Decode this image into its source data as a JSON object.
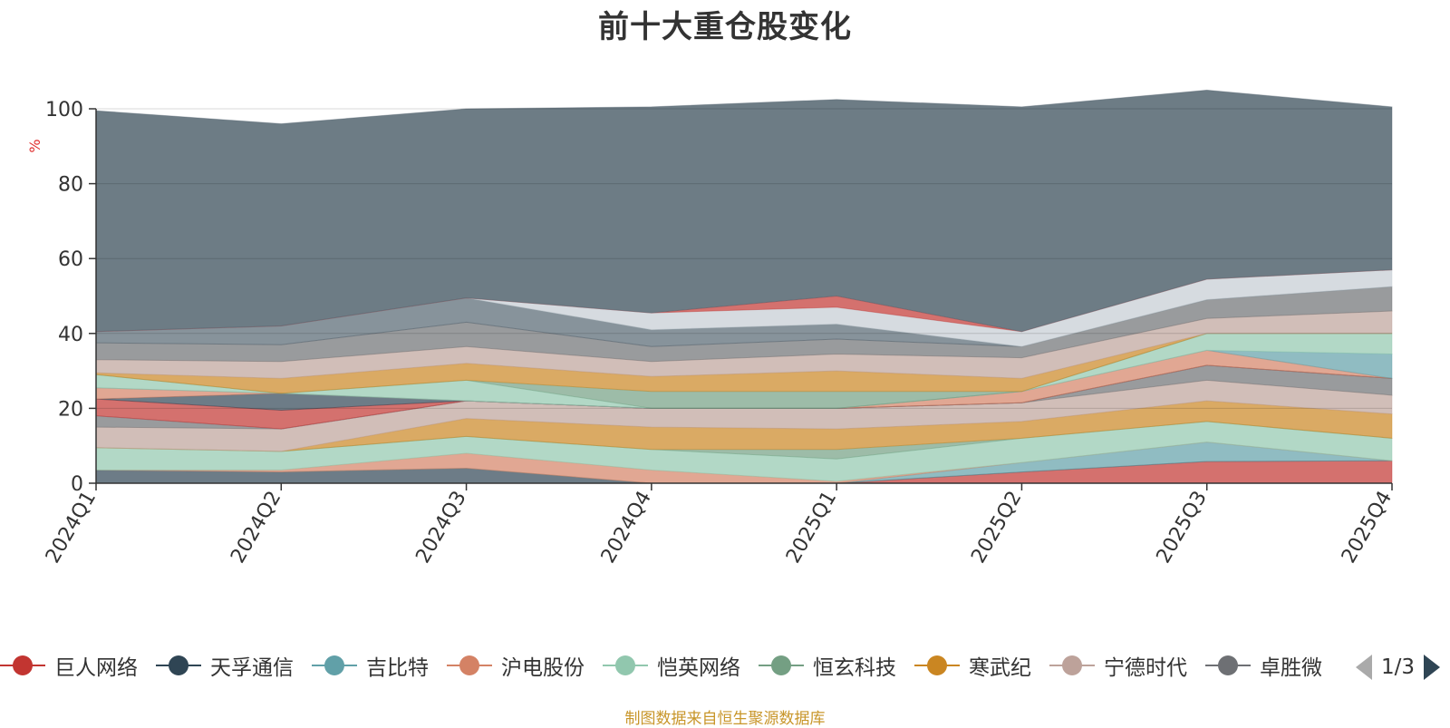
{
  "chart_data": {
    "type": "area",
    "stacked": true,
    "title": "前十大重仓股变化",
    "ylabel": "%",
    "xlabel": "",
    "ylim": [
      0,
      100
    ],
    "yticks": [
      0,
      20,
      40,
      60,
      80,
      100
    ],
    "grid": true,
    "categories": [
      "2024Q1",
      "2024Q2",
      "2024Q3",
      "2024Q4",
      "2025Q1",
      "2025Q2",
      "2025Q3",
      "2025Q4"
    ],
    "series": [
      {
        "name": "巨人网络",
        "color": "#c23531",
        "values": [
          0,
          0,
          0,
          0,
          0,
          3.0,
          5.8,
          6.0
        ]
      },
      {
        "name": "天孚通信",
        "color": "#2f4554",
        "values": [
          3.5,
          3.0,
          4.0,
          0,
          0,
          0,
          0,
          0
        ]
      },
      {
        "name": "吉比特",
        "color": "#61a0a8",
        "values": [
          0,
          0,
          0,
          0,
          0,
          2.5,
          5.2,
          0
        ]
      },
      {
        "name": "沪电股份",
        "color": "#d48265",
        "values": [
          0,
          0.5,
          4.0,
          3.5,
          0.5,
          0,
          0,
          0
        ]
      },
      {
        "name": "恺英网络",
        "color": "#91c7ae",
        "values": [
          6.0,
          5.0,
          4.5,
          5.5,
          6.0,
          6.5,
          5.5,
          6.0
        ]
      },
      {
        "name": "恒玄科技",
        "color": "#749f83",
        "values": [
          0,
          0,
          0,
          0,
          2.5,
          0,
          0,
          0
        ]
      },
      {
        "name": "寒武纪",
        "color": "#ca8622",
        "values": [
          0,
          0,
          4.8,
          6.0,
          5.5,
          4.5,
          5.5,
          6.5
        ]
      },
      {
        "name": "宁德时代",
        "color": "#bda29a",
        "values": [
          5.5,
          6.0,
          4.7,
          5.0,
          5.5,
          5.0,
          5.5,
          5.0
        ]
      },
      {
        "name": "卓胜微",
        "color": "#6e7074",
        "values": [
          3.0,
          0,
          0,
          0,
          0,
          0,
          4.0,
          4.5
        ]
      },
      {
        "name": "",
        "color": "#546570",
        "values": [
          0,
          0,
          0,
          0,
          0,
          0,
          0,
          0
        ]
      },
      {
        "name": "",
        "color": "#c4ccd3",
        "values": [
          0,
          0,
          0,
          0,
          0,
          0,
          0,
          0
        ]
      },
      {
        "name": "",
        "color": "#c23531",
        "values": [
          4.5,
          5.0,
          0,
          0,
          0,
          0,
          0,
          0
        ]
      },
      {
        "name": "",
        "color": "#2f4554",
        "values": [
          0,
          4.5,
          0,
          0,
          0,
          0,
          0,
          0
        ]
      },
      {
        "name": "",
        "color": "#d48265",
        "values": [
          3.0,
          0,
          0,
          0,
          0,
          3.0,
          4.0,
          0
        ]
      },
      {
        "name": "",
        "color": "#61a0a8",
        "values": [
          0,
          0,
          0,
          0,
          0,
          0,
          0,
          6.5
        ]
      },
      {
        "name": "",
        "color": "#91c7ae",
        "values": [
          3.5,
          0,
          5.5,
          0,
          0,
          0,
          4.5,
          5.5
        ]
      },
      {
        "name": "",
        "color": "#749f83",
        "values": [
          0,
          0,
          0,
          4.5,
          4.5,
          0,
          0,
          0
        ]
      },
      {
        "name": "",
        "color": "#ca8622",
        "values": [
          0.5,
          4.0,
          4.5,
          4.0,
          5.5,
          3.5,
          0,
          0
        ]
      },
      {
        "name": "",
        "color": "#bda29a",
        "values": [
          3.5,
          4.5,
          4.5,
          4.0,
          4.5,
          5.5,
          4.0,
          6.0
        ]
      },
      {
        "name": "",
        "color": "#6e7074",
        "values": [
          4.5,
          4.5,
          6.5,
          4.0,
          4.0,
          3.0,
          5.0,
          6.5
        ]
      },
      {
        "name": "",
        "color": "#546570",
        "values": [
          3.0,
          5.0,
          6.5,
          4.5,
          4.0,
          0,
          0,
          0
        ]
      },
      {
        "name": "",
        "color": "#c4ccd3",
        "values": [
          0,
          0,
          0,
          4.5,
          4.5,
          4.0,
          5.5,
          4.5
        ]
      },
      {
        "name": "",
        "color": "#c23531",
        "values": [
          0,
          0,
          0,
          0,
          3.0,
          0,
          0,
          0
        ]
      },
      {
        "name": "",
        "color": "#546570",
        "values": [
          59.0,
          54.0,
          50.5,
          55.0,
          52.5,
          60.0,
          50.5,
          43.5
        ]
      }
    ]
  },
  "legend": {
    "items": [
      {
        "label": "巨人网络",
        "color": "#c23531"
      },
      {
        "label": "天孚通信",
        "color": "#2f4554"
      },
      {
        "label": "吉比特",
        "color": "#61a0a8"
      },
      {
        "label": "沪电股份",
        "color": "#d48265"
      },
      {
        "label": "恺英网络",
        "color": "#91c7ae"
      },
      {
        "label": "恒玄科技",
        "color": "#749f83"
      },
      {
        "label": "寒武纪",
        "color": "#ca8622"
      },
      {
        "label": "宁德时代",
        "color": "#bda29a"
      },
      {
        "label": "卓胜微",
        "color": "#6e7074"
      }
    ],
    "page_indicator": "1/3"
  },
  "footer": {
    "source": "制图数据来自恒生聚源数据库"
  }
}
